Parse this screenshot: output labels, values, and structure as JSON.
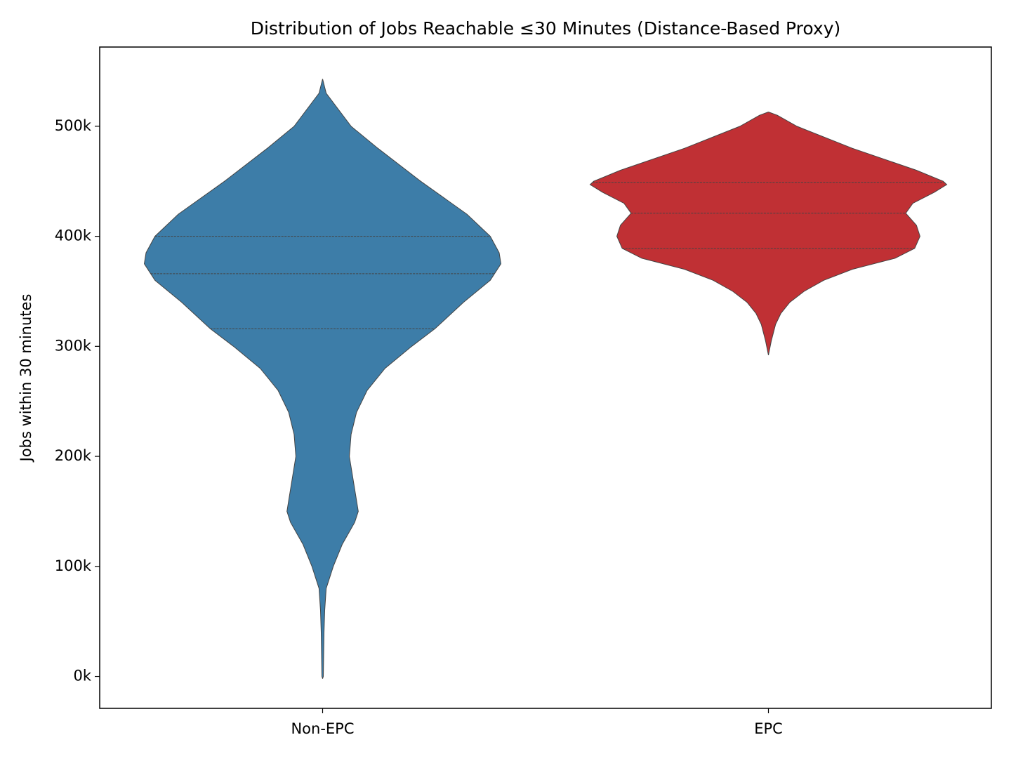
{
  "chart_data": {
    "type": "violin",
    "title": "Distribution of Jobs Reachable ≤30 Minutes (Distance-Based Proxy)",
    "y_label": "Jobs within 30 minutes",
    "categories": [
      "Non-EPC",
      "EPC"
    ],
    "ylim": [
      -29000,
      572000
    ],
    "yticks": [
      {
        "value": 0,
        "label": "0k"
      },
      {
        "value": 100000,
        "label": "100k"
      },
      {
        "value": 200000,
        "label": "200k"
      },
      {
        "value": 300000,
        "label": "300k"
      },
      {
        "value": 400000,
        "label": "400k"
      },
      {
        "value": 500000,
        "label": "500k"
      }
    ],
    "series": [
      {
        "name": "Non-EPC",
        "color": "#3d7da8",
        "profile_y": [
          543000,
          530000,
          500000,
          480000,
          450000,
          420000,
          400000,
          385000,
          375000,
          360000,
          340000,
          316000,
          300000,
          280000,
          260000,
          240000,
          220000,
          200000,
          180000,
          160000,
          150000,
          140000,
          120000,
          100000,
          80000,
          60000,
          40000,
          20000,
          0,
          -2000
        ],
        "density": [
          0,
          0.02,
          0.16,
          0.31,
          0.55,
          0.81,
          0.94,
          0.99,
          1,
          0.94,
          0.79,
          0.63,
          0.5,
          0.35,
          0.25,
          0.19,
          0.16,
          0.15,
          0.17,
          0.19,
          0.2,
          0.18,
          0.11,
          0.06,
          0.02,
          0.012,
          0.008,
          0.006,
          0.004,
          0
        ],
        "quartiles": [
          316000,
          366000,
          400000
        ]
      },
      {
        "name": "EPC",
        "color": "#c03034",
        "profile_y": [
          513000,
          510000,
          500000,
          480000,
          460000,
          450000,
          447000,
          440000,
          430000,
          421000,
          410000,
          400000,
          389000,
          380000,
          370000,
          360000,
          350000,
          340000,
          330000,
          320000,
          305000,
          292000
        ],
        "density": [
          0,
          0.05,
          0.16,
          0.47,
          0.83,
          0.98,
          1,
          0.93,
          0.81,
          0.77,
          0.83,
          0.85,
          0.82,
          0.71,
          0.47,
          0.31,
          0.2,
          0.12,
          0.07,
          0.04,
          0.016,
          0
        ],
        "quartiles": [
          389000,
          421000,
          449000
        ]
      }
    ]
  }
}
